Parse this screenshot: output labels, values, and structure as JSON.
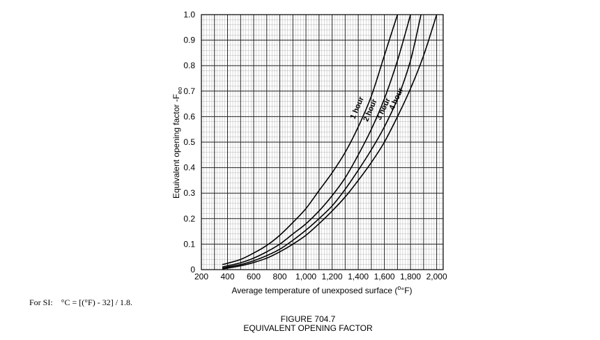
{
  "chart_data": {
    "type": "line",
    "xlabel": "Average temperature of unexposed surface (",
    "xlabel_unit": "°F)",
    "ylabel": "Equivalent opening factor -F",
    "ylabel_sub": "eo",
    "xlim": [
      200,
      2050
    ],
    "ylim": [
      0,
      1.0
    ],
    "x_ticks": [
      {
        "v": 200,
        "t": "200"
      },
      {
        "v": 400,
        "t": "400"
      },
      {
        "v": 600,
        "t": "600"
      },
      {
        "v": 800,
        "t": "800"
      },
      {
        "v": 1000,
        "t": "1,000"
      },
      {
        "v": 1200,
        "t": "1,200"
      },
      {
        "v": 1400,
        "t": "1,400"
      },
      {
        "v": 1600,
        "t": "1,600"
      },
      {
        "v": 1800,
        "t": "1,800"
      },
      {
        "v": 2000,
        "t": "2,000"
      }
    ],
    "y_ticks": [
      {
        "v": 0,
        "t": "0"
      },
      {
        "v": 0.1,
        "t": "0.1"
      },
      {
        "v": 0.2,
        "t": "0.2"
      },
      {
        "v": 0.3,
        "t": "0.3"
      },
      {
        "v": 0.4,
        "t": "0.4"
      },
      {
        "v": 0.5,
        "t": "0.5"
      },
      {
        "v": 0.6,
        "t": "0.6"
      },
      {
        "v": 0.7,
        "t": "0.7"
      },
      {
        "v": 0.8,
        "t": "0.8"
      },
      {
        "v": 0.9,
        "t": "0.9"
      },
      {
        "v": 1.0,
        "t": "1.0"
      }
    ],
    "grid": true,
    "series": [
      {
        "name": "1 hour",
        "x": [
          360,
          400,
          500,
          600,
          700,
          800,
          900,
          1000,
          1100,
          1200,
          1300,
          1400,
          1500,
          1600,
          1700
        ],
        "y": [
          0.02,
          0.025,
          0.04,
          0.065,
          0.095,
          0.135,
          0.185,
          0.24,
          0.31,
          0.38,
          0.46,
          0.56,
          0.68,
          0.84,
          1.0
        ]
      },
      {
        "name": "2 hour",
        "x": [
          360,
          400,
          500,
          600,
          700,
          800,
          900,
          1000,
          1100,
          1200,
          1300,
          1400,
          1500,
          1600,
          1700,
          1800
        ],
        "y": [
          0.01,
          0.015,
          0.027,
          0.045,
          0.07,
          0.1,
          0.14,
          0.18,
          0.23,
          0.29,
          0.36,
          0.45,
          0.55,
          0.67,
          0.82,
          1.0
        ]
      },
      {
        "name": "3 hour",
        "x": [
          360,
          400,
          500,
          600,
          700,
          800,
          900,
          1000,
          1100,
          1200,
          1300,
          1400,
          1500,
          1600,
          1700,
          1800,
          1880
        ],
        "y": [
          0.005,
          0.01,
          0.02,
          0.035,
          0.055,
          0.08,
          0.115,
          0.155,
          0.2,
          0.25,
          0.315,
          0.39,
          0.47,
          0.56,
          0.67,
          0.82,
          1.0
        ]
      },
      {
        "name": "4 hour",
        "x": [
          360,
          400,
          500,
          600,
          700,
          800,
          900,
          1000,
          1100,
          1200,
          1300,
          1400,
          1500,
          1600,
          1700,
          1800,
          1900,
          2000
        ],
        "y": [
          0.003,
          0.006,
          0.015,
          0.028,
          0.045,
          0.07,
          0.1,
          0.135,
          0.18,
          0.23,
          0.285,
          0.35,
          0.42,
          0.5,
          0.6,
          0.71,
          0.84,
          1.0
        ]
      }
    ]
  },
  "note": "For SI:    °C = [(°F) - 32] / 1.8.",
  "figure_number": "FIGURE 704.7",
  "figure_title": "EQUIVALENT OPENING FACTOR"
}
